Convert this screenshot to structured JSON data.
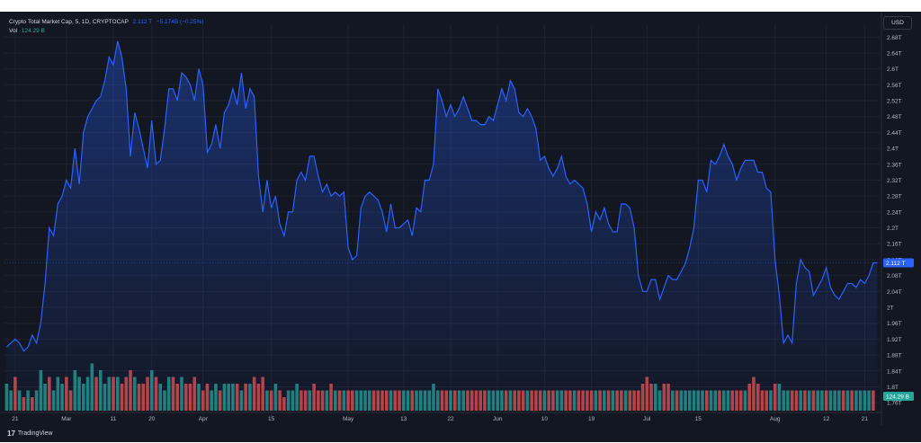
{
  "legend": {
    "symbol": "Crypto Total Market Cap, 5, 1D, CRYPTOCAP",
    "last": "2.112 T",
    "change": "−5.174B (−0.25%)",
    "vol_label": "Vol",
    "vol_value": "124.29 B"
  },
  "usd_button": "USD",
  "footer": {
    "logo": "17",
    "brand": "TradingView"
  },
  "colors": {
    "line": "#2962ff",
    "up": "#26a69a",
    "down": "#ef5350",
    "background": "#131722",
    "grid": "#1e2230"
  },
  "chart_data": [
    {
      "type": "area",
      "series_label": "Crypto Total Market Cap",
      "y_unit": "T",
      "ylim": [
        1.74,
        2.71
      ],
      "y_ticks": [
        "2.68T",
        "2.64T",
        "2.6T",
        "2.56T",
        "2.52T",
        "2.48T",
        "2.44T",
        "2.4T",
        "2.36T",
        "2.32T",
        "2.28T",
        "2.24T",
        "2.2T",
        "2.16T",
        "2.12T",
        "2.08T",
        "2.04T",
        "2T",
        "1.96T",
        "1.92T",
        "1.88T",
        "1.84T",
        "1.8T",
        "1.76T"
      ],
      "y_tick_values": [
        2.68,
        2.64,
        2.6,
        2.56,
        2.52,
        2.48,
        2.44,
        2.4,
        2.36,
        2.32,
        2.28,
        2.24,
        2.2,
        2.16,
        2.12,
        2.08,
        2.04,
        2.0,
        1.96,
        1.92,
        1.88,
        1.84,
        1.8,
        1.76
      ],
      "x_ticks": [
        "21",
        "Mar",
        "11",
        "20",
        "Apr",
        "15",
        "May",
        "13",
        "22",
        "Jun",
        "10",
        "19",
        "Jul",
        "15",
        "Aug",
        "12",
        "21"
      ],
      "x_tick_index": [
        2,
        14,
        25,
        34,
        46,
        62,
        80,
        93,
        104,
        115,
        126,
        137,
        150,
        162,
        180,
        192,
        201
      ],
      "last_value_label": "2.112 T",
      "values": [
        1.9,
        1.91,
        1.92,
        1.91,
        1.89,
        1.9,
        1.93,
        1.91,
        1.96,
        2.06,
        2.2,
        2.18,
        2.26,
        2.28,
        2.32,
        2.3,
        2.4,
        2.31,
        2.44,
        2.48,
        2.5,
        2.52,
        2.53,
        2.57,
        2.63,
        2.61,
        2.67,
        2.63,
        2.55,
        2.38,
        2.49,
        2.45,
        2.4,
        2.35,
        2.47,
        2.36,
        2.37,
        2.45,
        2.55,
        2.55,
        2.52,
        2.59,
        2.58,
        2.56,
        2.52,
        2.6,
        2.56,
        2.39,
        2.41,
        2.46,
        2.4,
        2.49,
        2.51,
        2.55,
        2.51,
        2.59,
        2.5,
        2.55,
        2.53,
        2.33,
        2.24,
        2.32,
        2.25,
        2.28,
        2.21,
        2.18,
        2.24,
        2.24,
        2.32,
        2.34,
        2.32,
        2.38,
        2.38,
        2.33,
        2.29,
        2.31,
        2.28,
        2.29,
        2.28,
        2.29,
        2.15,
        2.12,
        2.13,
        2.25,
        2.28,
        2.29,
        2.28,
        2.27,
        2.24,
        2.19,
        2.26,
        2.2,
        2.2,
        2.21,
        2.22,
        2.18,
        2.25,
        2.24,
        2.32,
        2.32,
        2.36,
        2.55,
        2.52,
        2.48,
        2.51,
        2.48,
        2.5,
        2.53,
        2.5,
        2.47,
        2.47,
        2.46,
        2.46,
        2.48,
        2.47,
        2.51,
        2.55,
        2.52,
        2.57,
        2.55,
        2.49,
        2.48,
        2.5,
        2.48,
        2.45,
        2.37,
        2.38,
        2.35,
        2.33,
        2.35,
        2.38,
        2.33,
        2.31,
        2.32,
        2.31,
        2.3,
        2.26,
        2.19,
        2.24,
        2.22,
        2.25,
        2.21,
        2.19,
        2.19,
        2.26,
        2.26,
        2.25,
        2.2,
        2.08,
        2.04,
        2.04,
        2.07,
        2.07,
        2.02,
        2.05,
        2.08,
        2.07,
        2.07,
        2.09,
        2.11,
        2.15,
        2.2,
        2.32,
        2.32,
        2.29,
        2.37,
        2.36,
        2.38,
        2.41,
        2.38,
        2.36,
        2.32,
        2.35,
        2.37,
        2.37,
        2.37,
        2.34,
        2.34,
        2.3,
        2.29,
        2.12,
        2.03,
        1.91,
        1.93,
        1.91,
        2.06,
        2.12,
        2.1,
        2.09,
        2.03,
        2.05,
        2.07,
        2.1,
        2.05,
        2.03,
        2.02,
        2.04,
        2.06,
        2.06,
        2.05,
        2.07,
        2.06,
        2.08,
        2.112,
        2.112
      ],
      "volume": {
        "values": [
          4,
          3,
          5,
          3,
          2,
          3,
          2,
          3,
          6,
          4,
          5,
          3,
          5,
          4,
          5,
          3,
          6,
          5,
          4,
          5,
          7,
          5,
          6,
          4,
          5,
          5,
          5,
          4,
          5,
          6,
          5,
          4,
          4,
          5,
          6,
          5,
          4,
          3,
          5,
          5,
          4,
          5,
          4,
          4,
          5,
          4,
          3,
          4,
          3,
          4,
          3,
          4,
          4,
          4,
          4,
          3,
          4,
          4,
          5,
          4,
          5,
          3,
          3,
          4,
          3,
          2,
          3,
          3,
          4,
          3,
          3,
          3,
          4,
          3,
          3,
          3,
          4,
          3,
          3,
          3,
          3,
          3,
          3,
          3,
          3,
          3,
          3,
          3,
          3,
          3,
          3,
          3,
          3,
          3,
          3,
          3,
          3,
          3,
          3,
          3,
          4,
          3,
          3,
          3,
          3,
          3,
          3,
          3,
          3,
          3,
          3,
          3,
          3,
          3,
          3,
          3,
          3,
          3,
          3,
          3,
          3,
          3,
          3,
          3,
          3,
          3,
          3,
          3,
          3,
          3,
          3,
          3,
          3,
          3,
          3,
          3,
          3,
          3,
          3,
          3,
          3,
          3,
          3,
          3,
          3,
          3,
          3,
          3,
          3,
          4,
          5,
          4,
          4,
          3,
          4,
          4,
          3,
          3,
          3,
          3,
          3,
          3,
          3,
          3,
          3,
          3,
          3,
          3,
          3,
          3,
          3,
          3,
          3,
          3,
          4,
          5,
          4,
          3,
          3,
          3,
          4,
          4,
          3,
          3,
          3,
          3,
          3,
          3,
          3,
          3,
          3,
          3,
          3,
          3,
          3,
          3,
          3,
          3,
          3,
          3,
          3,
          3,
          3,
          3
        ],
        "up": [
          1,
          1,
          0,
          1,
          0,
          1,
          0,
          1,
          1,
          1,
          0,
          1,
          1,
          1,
          0,
          0,
          1,
          1,
          1,
          1,
          1,
          0,
          1,
          1,
          1,
          0,
          1,
          0,
          0,
          0,
          1,
          0,
          0,
          0,
          1,
          0,
          1,
          1,
          1,
          0,
          0,
          1,
          0,
          0,
          0,
          1,
          0,
          0,
          1,
          1,
          0,
          1,
          1,
          1,
          0,
          1,
          0,
          1,
          0,
          0,
          0,
          1,
          0,
          1,
          0,
          0,
          1,
          1,
          1,
          0,
          0,
          1,
          0,
          0,
          0,
          1,
          0,
          1,
          0,
          1,
          0,
          0,
          1,
          1,
          1,
          1,
          0,
          0,
          0,
          0,
          1,
          0,
          0,
          1,
          1,
          0,
          1,
          1,
          1,
          1,
          1,
          1,
          0,
          0,
          1,
          0,
          1,
          1,
          0,
          0,
          0,
          0,
          0,
          1,
          1,
          1,
          1,
          0,
          1,
          0,
          0,
          0,
          1,
          0,
          0,
          0,
          1,
          0,
          0,
          1,
          1,
          0,
          0,
          1,
          0,
          0,
          0,
          0,
          1,
          0,
          1,
          0,
          1,
          0,
          0,
          1,
          0,
          0,
          0,
          0,
          0,
          0,
          1,
          1,
          0,
          0,
          1,
          0,
          1,
          1,
          1,
          1,
          1,
          1,
          0,
          1,
          1,
          0,
          1,
          1,
          0,
          0,
          0,
          1,
          0,
          0,
          0,
          0,
          0,
          1,
          0,
          1,
          1,
          1,
          0,
          0,
          1,
          0,
          1,
          0,
          1,
          1,
          0,
          1,
          1,
          1,
          0,
          1,
          0,
          1,
          1,
          1,
          1
        ]
      },
      "vol_label": "124.29 B"
    }
  ]
}
